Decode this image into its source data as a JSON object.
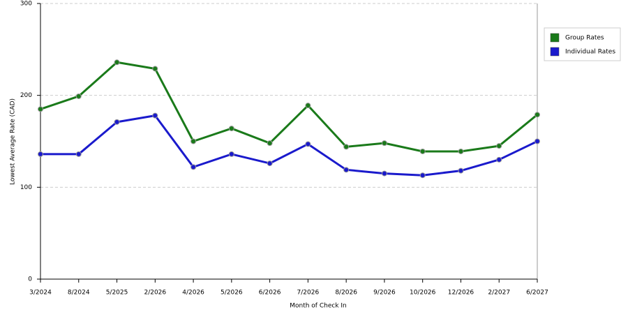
{
  "chart_data": {
    "type": "line",
    "x_label": "Month of Check In",
    "y_label": "Lowest Average Rate (CAD)",
    "categories": [
      "3/2024",
      "8/2024",
      "5/2025",
      "2/2026",
      "4/2026",
      "5/2026",
      "6/2026",
      "7/2026",
      "8/2026",
      "9/2026",
      "10/2026",
      "12/2026",
      "2/2027",
      "6/2027"
    ],
    "series": [
      {
        "name": "Group Rates",
        "color": "#1a7a1a",
        "values": [
          185,
          199,
          236,
          229,
          150,
          164,
          148,
          189,
          144,
          148,
          139,
          139,
          145,
          179
        ]
      },
      {
        "name": "Individual Rates",
        "color": "#1a1acc",
        "values": [
          136,
          136,
          171,
          178,
          122,
          136,
          126,
          147,
          119,
          115,
          113,
          118,
          130,
          150
        ]
      }
    ],
    "ylim": [
      0,
      300
    ],
    "yticks": [
      0,
      100,
      200,
      300
    ],
    "grid": true,
    "legend": "right"
  }
}
